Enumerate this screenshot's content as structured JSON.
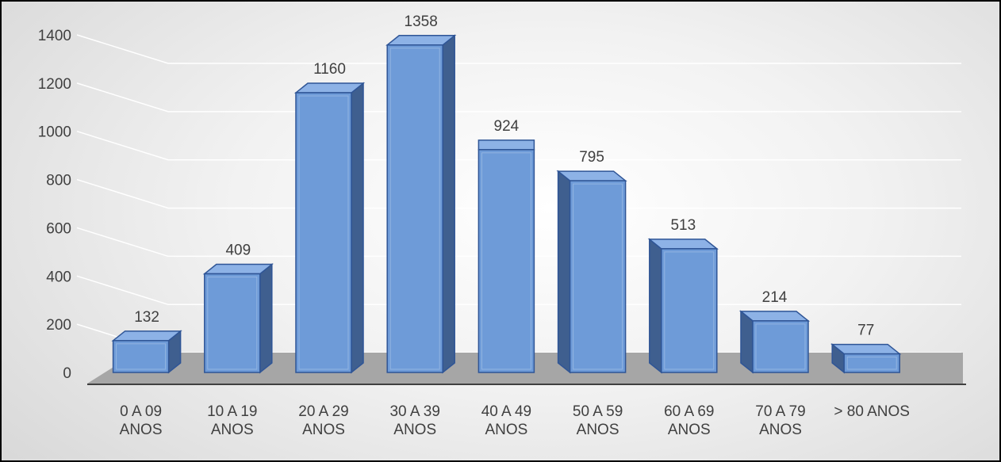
{
  "chart_data": {
    "type": "bar",
    "style": "3d-column",
    "categories": [
      [
        "0 A 09",
        "ANOS"
      ],
      [
        "10 A 19",
        "ANOS"
      ],
      [
        "20 A 29",
        "ANOS"
      ],
      [
        "30 A 39",
        "ANOS"
      ],
      [
        "40 A 49",
        "ANOS"
      ],
      [
        "50 A 59",
        "ANOS"
      ],
      [
        "60 A 69",
        "ANOS"
      ],
      [
        "70 A 79",
        "ANOS"
      ],
      [
        "> 80 ANOS"
      ]
    ],
    "values": [
      132,
      409,
      1160,
      1358,
      924,
      795,
      513,
      214,
      77
    ],
    "data_labels": [
      "132",
      "409",
      "1160",
      "1358",
      "924",
      "795",
      "513",
      "214",
      "77"
    ],
    "title": "",
    "xlabel": "",
    "ylabel": "",
    "ylim": [
      0,
      1400
    ],
    "yticks": [
      "0",
      "200",
      "400",
      "600",
      "800",
      "1000",
      "1200",
      "1400"
    ],
    "grid": true,
    "legend": "none",
    "colors": {
      "bar_front": "#6e9bd8",
      "bar_side": "#3f5f8f",
      "bar_top": "#8db2e6",
      "bar_edge": "#2f5596",
      "floor": "#a6a6a6",
      "gridline": "#ffffff",
      "axis": "#404040"
    }
  }
}
